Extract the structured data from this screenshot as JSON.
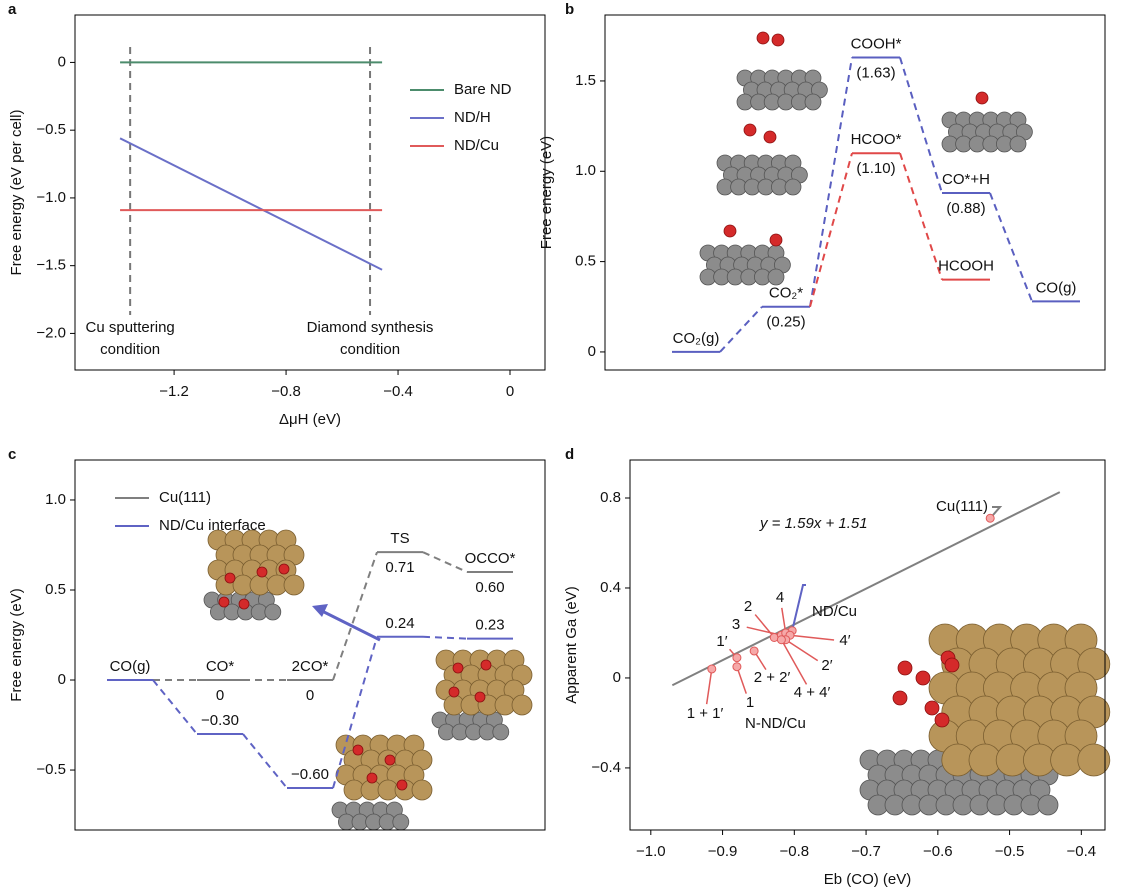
{
  "chart_data": [
    {
      "label": "a",
      "type": "line",
      "xlabel": "ΔμH (eV)",
      "ylabel": "Free energy (eV per cell)",
      "xlim": [
        -1.554,
        0.125
      ],
      "ylim": [
        -2.27,
        0.35
      ],
      "xticks": [
        {
          "value": -1.2,
          "label": "−1.2"
        },
        {
          "value": -0.8,
          "label": "−0.8"
        },
        {
          "value": -0.4,
          "label": "−0.4"
        },
        0
      ],
      "yticks": [
        0,
        {
          "value": -0.5,
          "label": "−0.5"
        },
        {
          "value": -1,
          "label": "−1.0"
        },
        {
          "value": -1.5,
          "label": "−1.5"
        },
        {
          "value": -2,
          "label": "−2.0"
        }
      ],
      "legend": "right",
      "series": [
        {
          "name": "Bare ND",
          "color": "#4c8c6c",
          "x": [
            -1.393,
            -0.457
          ],
          "values": [
            0,
            0
          ]
        },
        {
          "name": "ND/H",
          "color": "#6b70c8",
          "x": [
            -1.393,
            -0.457
          ],
          "values": [
            -0.56,
            -1.53
          ]
        },
        {
          "name": "ND/Cu",
          "color": "#e05a5a",
          "x": [
            -1.393,
            -0.457
          ],
          "values": [
            -1.09,
            -1.09
          ]
        }
      ],
      "vlines": [
        {
          "x": -1.357,
          "label": [
            "Cu sputtering",
            "condition"
          ]
        },
        {
          "x": -0.5,
          "label": [
            "Diamond synthesis",
            "condition"
          ]
        }
      ]
    },
    {
      "label": "b",
      "type": "energy_diagram",
      "ylabel": "Free energy (eV)",
      "ylim": [
        -0.1,
        1.865
      ],
      "yticks": [
        0,
        0.5,
        {
          "value": 1,
          "label": "1.0"
        },
        1.5
      ],
      "series": [
        {
          "color": "#5a5fc0",
          "states": [
            "CO₂(g)",
            "CO₂*",
            "COOH*",
            "CO*+H",
            "CO(g)"
          ],
          "values": [
            0,
            0.25,
            1.63,
            0.88,
            0.28
          ],
          "value_labels": [
            null,
            "(0.25)",
            "(1.63)",
            "(0.88)",
            null
          ],
          "value_label_position": "below"
        },
        {
          "color": "#e04848",
          "states": [
            null,
            null,
            "HCOO*",
            "HCOOH",
            null
          ],
          "values": [
            null,
            null,
            1.1,
            0.4,
            null
          ],
          "value_labels": [
            null,
            null,
            "(1.10)",
            null,
            null
          ],
          "value_label_position": "below"
        }
      ]
    },
    {
      "label": "c",
      "type": "energy_diagram",
      "ylabel": "Free energy (eV)",
      "ylim": [
        -0.833,
        1.222
      ],
      "yticks": [
        {
          "value": -0.5,
          "label": "−0.5"
        },
        0,
        0.5,
        {
          "value": 1,
          "label": "1.0"
        }
      ],
      "legend": "upper left",
      "series": [
        {
          "name": "Cu(111)",
          "color": "#7f7f7f",
          "states": [
            "CO(g)",
            "CO*",
            "2CO*",
            "TS",
            "OCCO*"
          ],
          "values": [
            0,
            0,
            0,
            0.71,
            0.6
          ],
          "value_labels": [
            null,
            "0",
            "0",
            "0.71",
            "0.60"
          ],
          "value_label_position": "below"
        },
        {
          "name": "ND/Cu interface",
          "color": "#5f63c4",
          "values": [
            0,
            -0.3,
            -0.6,
            0.24,
            0.23
          ],
          "value_labels": [
            null,
            "−0.30",
            "−0.60",
            "0.24",
            "0.23"
          ],
          "value_label_position": "above"
        }
      ]
    },
    {
      "label": "d",
      "type": "scatter",
      "xlabel": "Eb (CO) (eV)",
      "ylabel": "Apparent Ga (eV)",
      "xlim": [
        -1.029,
        -0.367
      ],
      "ylim": [
        -0.676,
        0.969
      ],
      "xticks": [
        {
          "value": -1,
          "label": "−1.0"
        },
        {
          "value": -0.9,
          "label": "−0.9"
        },
        {
          "value": -0.8,
          "label": "−0.8"
        },
        {
          "value": -0.7,
          "label": "−0.7"
        },
        {
          "value": -0.6,
          "label": "−0.6"
        },
        {
          "value": -0.5,
          "label": "−0.5"
        },
        {
          "value": -0.4,
          "label": "−0.4"
        }
      ],
      "yticks": [
        {
          "value": -0.4,
          "label": "−0.4"
        },
        0,
        0.4,
        0.8
      ],
      "annotation": "y = 1.59x + 1.51",
      "fit": {
        "slope": 1.59,
        "intercept": 1.51,
        "x": [
          -0.97,
          -0.43
        ]
      },
      "series": [
        {
          "name": "Cu(111)",
          "color": "#e05a5a",
          "x": [
            -0.527
          ],
          "values": [
            0.71
          ]
        },
        {
          "name": "ND/Cu",
          "color": "#e05a5a",
          "x": [
            -0.803
          ],
          "values": [
            0.21
          ]
        },
        {
          "name": "N-ND/Cu",
          "color": "#e05a5a",
          "x": [
            -0.915,
            -0.88,
            -0.88,
            -0.856,
            -0.828,
            -0.818,
            -0.812,
            -0.806,
            -0.812,
            -0.818
          ],
          "values": [
            0.04,
            0.05,
            0.09,
            0.12,
            0.18,
            0.19,
            0.2,
            0.19,
            0.17,
            0.17
          ],
          "point_labels": [
            "1 + 1′",
            "1",
            "1′",
            "2 + 2′",
            "2",
            "3",
            "4",
            "4′",
            "2′",
            "4 + 4′"
          ]
        }
      ]
    }
  ]
}
